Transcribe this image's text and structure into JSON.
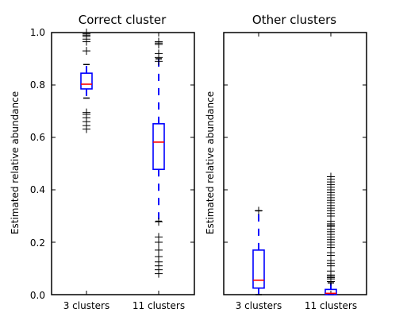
{
  "chart_data": [
    {
      "type": "box",
      "title": "Correct cluster",
      "xlabel": "",
      "ylabel": "Estimated relative abundance",
      "ylim": [
        0,
        1
      ],
      "yticks": [
        0.0,
        0.2,
        0.4,
        0.6,
        0.8,
        1.0
      ],
      "ytick_labels": [
        "0.0",
        "0.2",
        "0.4",
        "0.6",
        "0.8",
        "1.0"
      ],
      "show_ytick_labels": true,
      "categories": [
        "3 clusters",
        "11 clusters"
      ],
      "boxes": [
        {
          "category": "3 clusters",
          "whisker_low": 0.75,
          "q1": 0.785,
          "median": 0.803,
          "q3": 0.845,
          "whisker_high": 0.878,
          "outliers": [
            0.632,
            0.645,
            0.66,
            0.675,
            0.688,
            0.695,
            0.93,
            0.965,
            0.975,
            0.985,
            0.99,
            0.995,
            1.0
          ]
        },
        {
          "category": "11 clusters",
          "whisker_low": 0.28,
          "q1": 0.478,
          "median": 0.582,
          "q3": 0.652,
          "whisker_high": 0.9,
          "outliers": [
            0.08,
            0.095,
            0.11,
            0.125,
            0.145,
            0.17,
            0.2,
            0.22,
            0.278,
            0.89,
            0.905,
            0.92,
            0.955,
            0.96,
            0.965
          ]
        }
      ]
    },
    {
      "type": "box",
      "title": "Other clusters",
      "xlabel": "",
      "ylabel": "Estimated relative abundance",
      "ylim": [
        0,
        1
      ],
      "yticks": [
        0.0,
        0.2,
        0.4,
        0.6,
        0.8,
        1.0
      ],
      "show_ytick_labels": false,
      "categories": [
        "3 clusters",
        "11 clusters"
      ],
      "boxes": [
        {
          "category": "3 clusters",
          "whisker_low": 0.0,
          "q1": 0.025,
          "median": 0.055,
          "q3": 0.17,
          "whisker_high": 0.32,
          "outliers": [
            0.32
          ]
        },
        {
          "category": "11 clusters",
          "whisker_low": 0.0,
          "q1": 0.0,
          "median": 0.005,
          "q3": 0.02,
          "whisker_high": 0.045,
          "outliers": [
            0.05,
            0.06,
            0.065,
            0.07,
            0.075,
            0.09,
            0.11,
            0.12,
            0.13,
            0.15,
            0.16,
            0.18,
            0.19,
            0.2,
            0.21,
            0.22,
            0.23,
            0.24,
            0.25,
            0.26,
            0.265,
            0.27,
            0.28,
            0.3,
            0.31,
            0.32,
            0.33,
            0.34,
            0.35,
            0.36,
            0.37,
            0.38,
            0.39,
            0.4,
            0.41,
            0.42,
            0.43,
            0.44,
            0.45
          ]
        }
      ]
    }
  ],
  "colors": {
    "box": "#0000ff",
    "median": "#ff0000",
    "whisker": "#0000ff",
    "flier": "#000000",
    "axes": "#000000"
  }
}
